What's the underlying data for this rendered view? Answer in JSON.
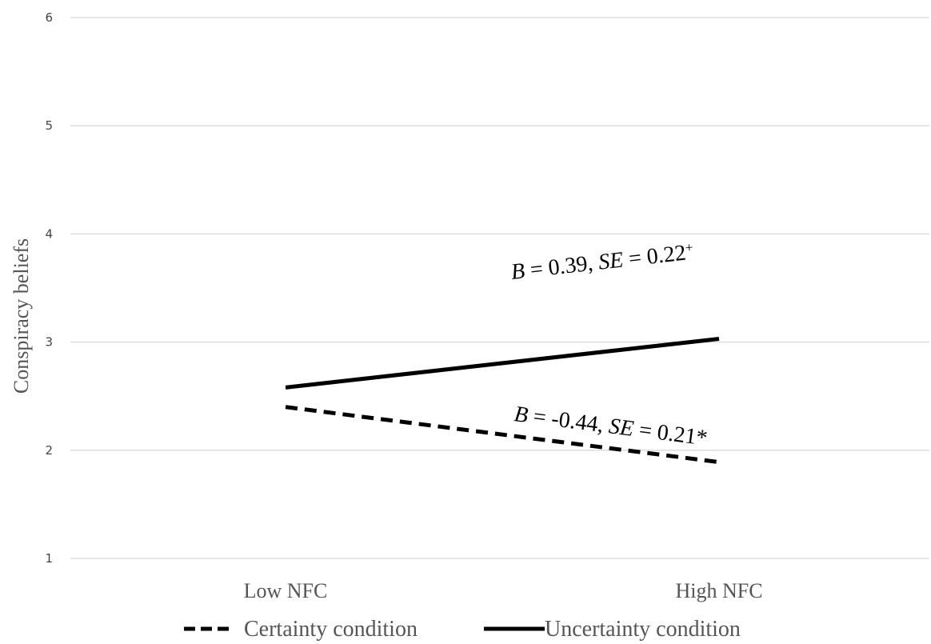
{
  "chart_data": {
    "type": "line",
    "categories": [
      "Low NFC",
      "High NFC"
    ],
    "series": [
      {
        "name": "Certainty condition",
        "values": [
          2.4,
          1.89
        ],
        "style": "dashed",
        "color": "#000000"
      },
      {
        "name": "Uncertainty condition",
        "values": [
          2.58,
          3.03
        ],
        "style": "solid",
        "color": "#000000"
      }
    ],
    "ylabel": "Conspiracy beliefs",
    "ylim": [
      1,
      6
    ],
    "yticks": [
      1,
      2,
      3,
      4,
      5,
      6
    ],
    "grid": true,
    "legend": "bottom",
    "annotations": [
      {
        "series": "Uncertainty condition",
        "parts": [
          {
            "t": "B",
            "i": true
          },
          {
            "t": " = 0.39, "
          },
          {
            "t": "SE",
            "i": true
          },
          {
            "t": " = 0.22"
          },
          {
            "t": "+",
            "sup": true
          }
        ]
      },
      {
        "series": "Certainty condition",
        "parts": [
          {
            "t": "B",
            "i": true
          },
          {
            "t": " = -0.44, "
          },
          {
            "t": "SE",
            "i": true
          },
          {
            "t": " = 0.21*"
          }
        ]
      }
    ]
  }
}
